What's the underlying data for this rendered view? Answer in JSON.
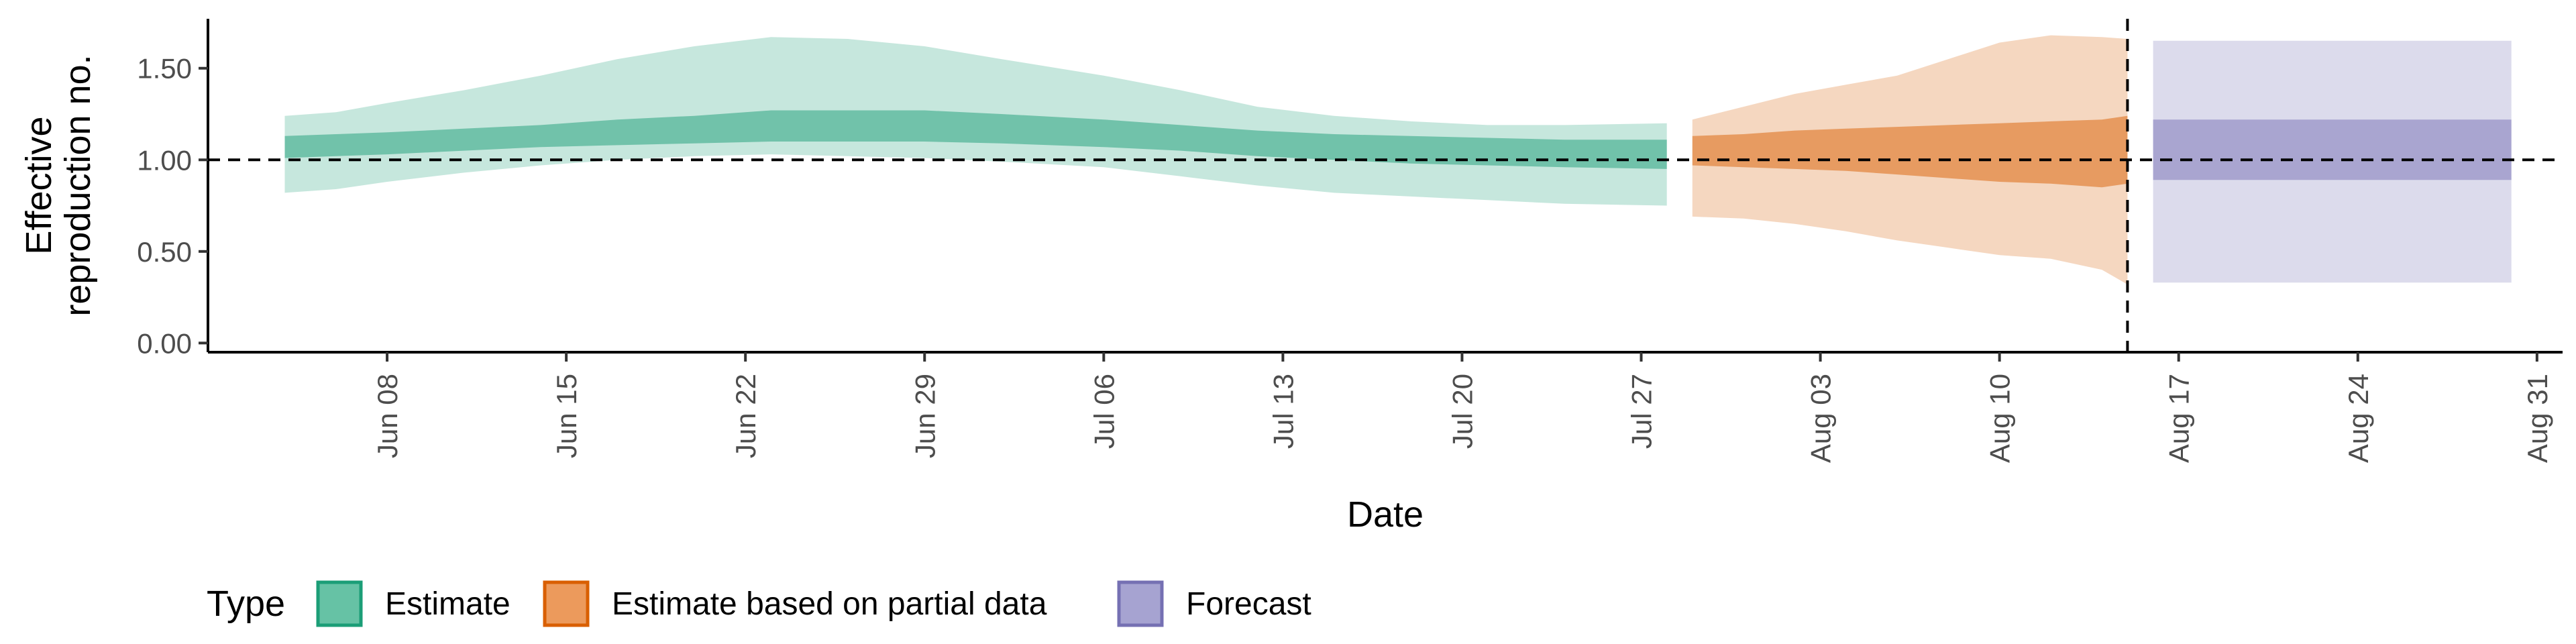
{
  "chart_data": {
    "type": "area",
    "xlabel": "Date",
    "ylabel": [
      "Effective",
      "reproduction no."
    ],
    "ylim": [
      -0.05,
      1.77
    ],
    "xlim": [
      "2020-06-01",
      "2020-09-01"
    ],
    "y_ticks": [
      0.0,
      0.5,
      1.0,
      1.5
    ],
    "y_tick_labels": [
      "0.00",
      "0.50",
      "1.00",
      "1.50"
    ],
    "x_ticks": [
      "2020-06-08",
      "2020-06-15",
      "2020-06-22",
      "2020-06-29",
      "2020-07-06",
      "2020-07-13",
      "2020-07-20",
      "2020-07-27",
      "2020-08-03",
      "2020-08-10",
      "2020-08-17",
      "2020-08-24",
      "2020-08-31"
    ],
    "x_tick_labels": [
      "Jun 08",
      "Jun 15",
      "Jun 22",
      "Jun 29",
      "Jul 06",
      "Jul 13",
      "Jul 20",
      "Jul 27",
      "Aug 03",
      "Aug 10",
      "Aug 17",
      "Aug 24",
      "Aug 31"
    ],
    "hline": 1.0,
    "vline": "2020-08-15",
    "grid": false,
    "legend": {
      "title": "Type",
      "position": "bottom-left",
      "entries": [
        {
          "label": "Estimate",
          "fill": "#66c2a5",
          "stroke": "#1b9e77"
        },
        {
          "label": "Estimate based on partial data",
          "fill": "#ec9a5c",
          "stroke": "#d95f02"
        },
        {
          "label": "Forecast",
          "fill": "#a6a3d1",
          "stroke": "#7570b3"
        }
      ]
    },
    "series": [
      {
        "name": "Estimate",
        "outer_color": "#1b9e77",
        "inner_color": "#1b9e77",
        "x": [
          "2020-06-04",
          "2020-06-06",
          "2020-06-08",
          "2020-06-11",
          "2020-06-14",
          "2020-06-17",
          "2020-06-20",
          "2020-06-23",
          "2020-06-26",
          "2020-06-29",
          "2020-07-02",
          "2020-07-06",
          "2020-07-09",
          "2020-07-12",
          "2020-07-15",
          "2020-07-18",
          "2020-07-21",
          "2020-07-24",
          "2020-07-28"
        ],
        "outer_lower": [
          0.82,
          0.84,
          0.88,
          0.93,
          0.97,
          1.0,
          1.02,
          1.03,
          1.02,
          1.01,
          0.99,
          0.96,
          0.91,
          0.86,
          0.82,
          0.8,
          0.78,
          0.76,
          0.75
        ],
        "outer_upper": [
          1.24,
          1.26,
          1.31,
          1.38,
          1.46,
          1.55,
          1.62,
          1.67,
          1.66,
          1.62,
          1.55,
          1.46,
          1.38,
          1.29,
          1.24,
          1.21,
          1.19,
          1.19,
          1.2
        ],
        "inner_lower": [
          1.01,
          1.02,
          1.03,
          1.05,
          1.07,
          1.08,
          1.09,
          1.1,
          1.1,
          1.1,
          1.09,
          1.07,
          1.05,
          1.02,
          1.0,
          0.98,
          0.97,
          0.96,
          0.95
        ],
        "inner_upper": [
          1.13,
          1.14,
          1.15,
          1.17,
          1.19,
          1.22,
          1.24,
          1.27,
          1.27,
          1.27,
          1.25,
          1.22,
          1.19,
          1.16,
          1.14,
          1.13,
          1.12,
          1.11,
          1.11
        ]
      },
      {
        "name": "Estimate based on partial data",
        "outer_color": "#d95f02",
        "inner_color": "#d95f02",
        "x": [
          "2020-07-29",
          "2020-07-31",
          "2020-08-02",
          "2020-08-04",
          "2020-08-06",
          "2020-08-08",
          "2020-08-10",
          "2020-08-12",
          "2020-08-14",
          "2020-08-15"
        ],
        "outer_lower": [
          0.69,
          0.68,
          0.65,
          0.61,
          0.56,
          0.52,
          0.48,
          0.46,
          0.4,
          0.32
        ],
        "outer_upper": [
          1.22,
          1.29,
          1.36,
          1.41,
          1.46,
          1.55,
          1.64,
          1.68,
          1.67,
          1.66
        ],
        "inner_lower": [
          0.97,
          0.96,
          0.95,
          0.94,
          0.92,
          0.9,
          0.88,
          0.87,
          0.85,
          0.87
        ],
        "inner_upper": [
          1.13,
          1.14,
          1.16,
          1.17,
          1.18,
          1.19,
          1.2,
          1.21,
          1.22,
          1.24
        ]
      },
      {
        "name": "Forecast",
        "outer_color": "#7570b3",
        "inner_color": "#7570b3",
        "x": [
          "2020-08-16",
          "2020-08-30"
        ],
        "outer_lower": [
          0.33,
          0.33
        ],
        "outer_upper": [
          1.65,
          1.65
        ],
        "inner_lower": [
          0.89,
          0.89
        ],
        "inner_upper": [
          1.22,
          1.22
        ]
      }
    ]
  }
}
